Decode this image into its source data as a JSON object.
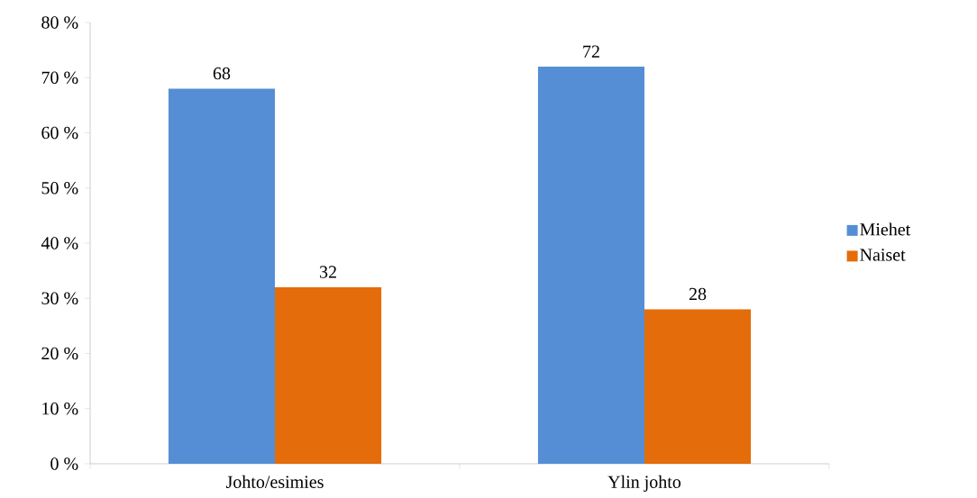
{
  "chart_data": {
    "type": "bar",
    "categories": [
      "Johto/esimies",
      "Ylin johto"
    ],
    "series": [
      {
        "name": "Miehet",
        "color": "#558ed5",
        "values": [
          68,
          72
        ]
      },
      {
        "name": "Naiset",
        "color": "#e46c0a",
        "values": [
          32,
          28
        ]
      }
    ],
    "ylim": [
      0,
      80
    ],
    "yticks": [
      {
        "value": 0,
        "label": "0 %"
      },
      {
        "value": 10,
        "label": "10 %"
      },
      {
        "value": 20,
        "label": "20 %"
      },
      {
        "value": 30,
        "label": "30 %"
      },
      {
        "value": 40,
        "label": "40 %"
      },
      {
        "value": 50,
        "label": "50 %"
      },
      {
        "value": 60,
        "label": "60 %"
      },
      {
        "value": 70,
        "label": "70 %"
      },
      {
        "value": 80,
        "label": "80 %"
      }
    ],
    "grid": false,
    "legend": "right",
    "data_labels": true
  }
}
